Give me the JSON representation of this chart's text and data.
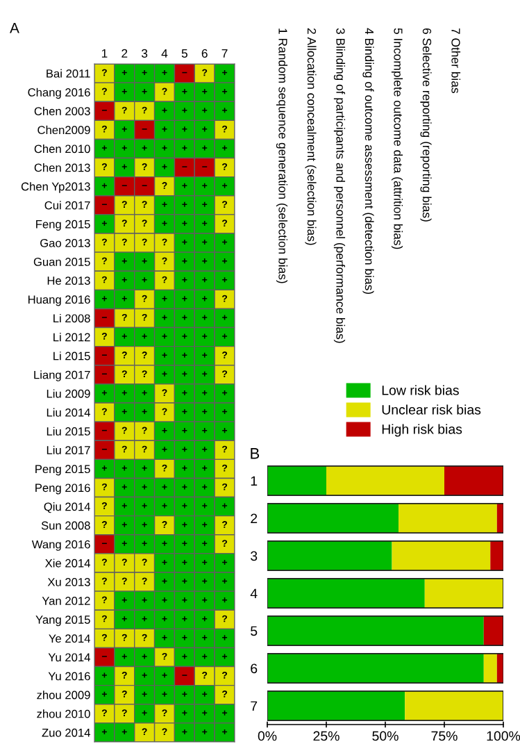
{
  "chart_data": [
    {
      "type": "heatmap",
      "title": "A",
      "categories": [
        "1",
        "2",
        "3",
        "4",
        "5",
        "6",
        "7"
      ],
      "y_categories": [
        "Bai 2011",
        "Chang 2016",
        "Chen 2003",
        "Chen2009",
        "Chen 2010",
        "Chen 2013",
        "Chen Yp2013",
        "Cui 2017",
        "Feng 2015",
        "Gao 2013",
        "Guan 2015",
        "He 2013",
        "Huang 2016",
        "Li 2008",
        "Li 2012",
        "Li 2015",
        "Liang 2017",
        "Liu 2009",
        "Liu 2014",
        "Liu 2015",
        "Liu 2017",
        "Peng 2015",
        "Peng 2016",
        "Qiu 2014",
        "Sun 2008",
        "Wang 2016",
        "Xie 2014",
        "Xu 2013",
        "Yan 2012",
        "Yang 2015",
        "Ye 2014",
        "Yu 2014",
        "Yu 2016",
        "zhou 2009",
        "zhou 2010",
        "Zuo 2014"
      ],
      "cells": [
        [
          "?",
          "+",
          "+",
          "+",
          "−",
          "?",
          "+"
        ],
        [
          "?",
          "+",
          "+",
          "?",
          "+",
          "+",
          "+"
        ],
        [
          "−",
          "?",
          "?",
          "+",
          "+",
          "+",
          "+"
        ],
        [
          "?",
          "+",
          "−",
          "+",
          "+",
          "+",
          "?"
        ],
        [
          "+",
          "+",
          "+",
          "+",
          "+",
          "+",
          "+"
        ],
        [
          "?",
          "+",
          "?",
          "+",
          "−",
          "−",
          "?"
        ],
        [
          "+",
          "−",
          "−",
          "?",
          "+",
          "+",
          "+"
        ],
        [
          "−",
          "?",
          "?",
          "+",
          "+",
          "+",
          "?"
        ],
        [
          "+",
          "?",
          "?",
          "+",
          "+",
          "+",
          "?"
        ],
        [
          "?",
          "?",
          "?",
          "?",
          "+",
          "+",
          "+"
        ],
        [
          "?",
          "+",
          "+",
          "?",
          "+",
          "+",
          "+"
        ],
        [
          "?",
          "+",
          "+",
          "?",
          "+",
          "+",
          "+"
        ],
        [
          "+",
          "+",
          "?",
          "+",
          "+",
          "+",
          "?"
        ],
        [
          "−",
          "?",
          "?",
          "+",
          "+",
          "+",
          "+"
        ],
        [
          "?",
          "+",
          "+",
          "+",
          "+",
          "+",
          "+"
        ],
        [
          "−",
          "?",
          "?",
          "+",
          "+",
          "+",
          "?"
        ],
        [
          "−",
          "?",
          "?",
          "+",
          "+",
          "+",
          "?"
        ],
        [
          "+",
          "+",
          "+",
          "?",
          "+",
          "+",
          "+"
        ],
        [
          "?",
          "+",
          "+",
          "?",
          "+",
          "+",
          "+"
        ],
        [
          "−",
          "?",
          "?",
          "+",
          "+",
          "+",
          "+"
        ],
        [
          "−",
          "?",
          "?",
          "+",
          "+",
          "+",
          "?"
        ],
        [
          "+",
          "+",
          "+",
          "?",
          "+",
          "+",
          "?"
        ],
        [
          "?",
          "+",
          "+",
          "+",
          "+",
          "+",
          "?"
        ],
        [
          "?",
          "+",
          "+",
          "+",
          "+",
          "+",
          "+"
        ],
        [
          "?",
          "+",
          "+",
          "?",
          "+",
          "+",
          "?"
        ],
        [
          "−",
          "+",
          "+",
          "+",
          "+",
          "+",
          "?"
        ],
        [
          "?",
          "?",
          "?",
          "+",
          "+",
          "+",
          "+"
        ],
        [
          "?",
          "?",
          "?",
          "+",
          "+",
          "+",
          "+"
        ],
        [
          "?",
          "+",
          "+",
          "+",
          "+",
          "+",
          "+"
        ],
        [
          "?",
          "+",
          "+",
          "+",
          "+",
          "+",
          "?"
        ],
        [
          "?",
          "?",
          "?",
          "+",
          "+",
          "+",
          "+"
        ],
        [
          "−",
          "+",
          "+",
          "?",
          "+",
          "+",
          "+"
        ],
        [
          "+",
          "?",
          "+",
          "+",
          "−",
          "?",
          "?"
        ],
        [
          "+",
          "?",
          "+",
          "+",
          "+",
          "+",
          "?"
        ],
        [
          "?",
          "?",
          "+",
          "?",
          "+",
          "+",
          "+"
        ],
        [
          "+",
          "+",
          "?",
          "?",
          "+",
          "+",
          "+"
        ]
      ],
      "colors": [
        [
          "#e0e000",
          "#00bb00",
          "#00bb00",
          "#00bb00",
          "#c00000",
          "#e0e000",
          "#00bb00"
        ],
        [
          "#e0e000",
          "#00bb00",
          "#00bb00",
          "#e0e000",
          "#00bb00",
          "#00bb00",
          "#00bb00"
        ],
        [
          "#c00000",
          "#e0e000",
          "#e0e000",
          "#00bb00",
          "#00bb00",
          "#00bb00",
          "#00bb00"
        ],
        [
          "#e0e000",
          "#00bb00",
          "#c00000",
          "#00bb00",
          "#00bb00",
          "#00bb00",
          "#e0e000"
        ],
        [
          "#00bb00",
          "#00bb00",
          "#00bb00",
          "#00bb00",
          "#00bb00",
          "#00bb00",
          "#00bb00"
        ],
        [
          "#e0e000",
          "#00bb00",
          "#e0e000",
          "#00bb00",
          "#c00000",
          "#c00000",
          "#e0e000"
        ],
        [
          "#00bb00",
          "#c00000",
          "#c00000",
          "#e0e000",
          "#00bb00",
          "#00bb00",
          "#00bb00"
        ],
        [
          "#c00000",
          "#e0e000",
          "#e0e000",
          "#00bb00",
          "#00bb00",
          "#00bb00",
          "#e0e000"
        ],
        [
          "#00bb00",
          "#e0e000",
          "#e0e000",
          "#00bb00",
          "#00bb00",
          "#00bb00",
          "#e0e000"
        ],
        [
          "#e0e000",
          "#e0e000",
          "#e0e000",
          "#e0e000",
          "#00bb00",
          "#00bb00",
          "#00bb00"
        ],
        [
          "#e0e000",
          "#00bb00",
          "#00bb00",
          "#e0e000",
          "#00bb00",
          "#00bb00",
          "#00bb00"
        ],
        [
          "#e0e000",
          "#00bb00",
          "#00bb00",
          "#e0e000",
          "#00bb00",
          "#00bb00",
          "#00bb00"
        ],
        [
          "#00bb00",
          "#00bb00",
          "#e0e000",
          "#00bb00",
          "#00bb00",
          "#00bb00",
          "#e0e000"
        ],
        [
          "#c00000",
          "#e0e000",
          "#e0e000",
          "#00bb00",
          "#00bb00",
          "#00bb00",
          "#00bb00"
        ],
        [
          "#e0e000",
          "#00bb00",
          "#00bb00",
          "#00bb00",
          "#00bb00",
          "#00bb00",
          "#00bb00"
        ],
        [
          "#c00000",
          "#e0e000",
          "#e0e000",
          "#00bb00",
          "#00bb00",
          "#00bb00",
          "#e0e000"
        ],
        [
          "#c00000",
          "#e0e000",
          "#e0e000",
          "#00bb00",
          "#00bb00",
          "#00bb00",
          "#e0e000"
        ],
        [
          "#00bb00",
          "#00bb00",
          "#00bb00",
          "#e0e000",
          "#00bb00",
          "#00bb00",
          "#00bb00"
        ],
        [
          "#e0e000",
          "#00bb00",
          "#00bb00",
          "#e0e000",
          "#00bb00",
          "#00bb00",
          "#00bb00"
        ],
        [
          "#c00000",
          "#e0e000",
          "#e0e000",
          "#00bb00",
          "#00bb00",
          "#00bb00",
          "#00bb00"
        ],
        [
          "#c00000",
          "#e0e000",
          "#e0e000",
          "#00bb00",
          "#00bb00",
          "#00bb00",
          "#e0e000"
        ],
        [
          "#00bb00",
          "#00bb00",
          "#00bb00",
          "#e0e000",
          "#00bb00",
          "#00bb00",
          "#e0e000"
        ],
        [
          "#e0e000",
          "#00bb00",
          "#00bb00",
          "#00bb00",
          "#00bb00",
          "#00bb00",
          "#e0e000"
        ],
        [
          "#e0e000",
          "#00bb00",
          "#00bb00",
          "#00bb00",
          "#00bb00",
          "#00bb00",
          "#00bb00"
        ],
        [
          "#e0e000",
          "#00bb00",
          "#00bb00",
          "#e0e000",
          "#00bb00",
          "#00bb00",
          "#e0e000"
        ],
        [
          "#c00000",
          "#00bb00",
          "#00bb00",
          "#00bb00",
          "#00bb00",
          "#00bb00",
          "#e0e000"
        ],
        [
          "#e0e000",
          "#e0e000",
          "#e0e000",
          "#00bb00",
          "#00bb00",
          "#00bb00",
          "#00bb00"
        ],
        [
          "#e0e000",
          "#e0e000",
          "#e0e000",
          "#00bb00",
          "#00bb00",
          "#00bb00",
          "#00bb00"
        ],
        [
          "#e0e000",
          "#00bb00",
          "#00bb00",
          "#00bb00",
          "#00bb00",
          "#00bb00",
          "#00bb00"
        ],
        [
          "#e0e000",
          "#00bb00",
          "#00bb00",
          "#00bb00",
          "#00bb00",
          "#00bb00",
          "#e0e000"
        ],
        [
          "#e0e000",
          "#e0e000",
          "#e0e000",
          "#00bb00",
          "#00bb00",
          "#00bb00",
          "#00bb00"
        ],
        [
          "#c00000",
          "#00bb00",
          "#00bb00",
          "#e0e000",
          "#00bb00",
          "#00bb00",
          "#00bb00"
        ],
        [
          "#00bb00",
          "#e0e000",
          "#00bb00",
          "#00bb00",
          "#c00000",
          "#e0e000",
          "#e0e000"
        ],
        [
          "#00bb00",
          "#e0e000",
          "#00bb00",
          "#00bb00",
          "#00bb00",
          "#00bb00",
          "#e0e000"
        ],
        [
          "#e0e000",
          "#e0e000",
          "#00bb00",
          "#e0e000",
          "#00bb00",
          "#00bb00",
          "#00bb00"
        ],
        [
          "#00bb00",
          "#00bb00",
          "#e0e000",
          "#e0e000",
          "#00bb00",
          "#00bb00",
          "#00bb00"
        ]
      ],
      "annotations": [
        "1 Random sequence generation (selection bias)",
        "2 Allocation concealment (selection bias)",
        "3 Blinding of participants and personnel (performance bias)",
        "4 Binding of outcome assessment (detection bias)",
        "5 Incomplete outcome data (attrition bias)",
        "6 Selective reporting (reporting bias)",
        "7 Other bias"
      ]
    },
    {
      "type": "bar",
      "title": "B",
      "orientation": "horizontal",
      "stacked": true,
      "categories": [
        "1",
        "2",
        "3",
        "4",
        "5",
        "6",
        "7"
      ],
      "series": [
        {
          "name": "Low risk bias",
          "color": "#00bb00",
          "values": [
            25.0,
            55.6,
            52.8,
            66.7,
            91.7,
            91.7,
            58.3
          ]
        },
        {
          "name": "Unclear risk bias",
          "color": "#e0e000",
          "values": [
            50.0,
            41.7,
            41.7,
            33.3,
            0,
            5.6,
            41.7
          ]
        },
        {
          "name": "High risk bias",
          "color": "#c00000",
          "values": [
            25.0,
            2.8,
            5.6,
            0,
            8.3,
            2.8,
            0
          ]
        }
      ],
      "xlim": [
        0,
        100
      ],
      "xticks": [
        {
          "value": 0,
          "label": "0%"
        },
        {
          "value": 25,
          "label": "25%"
        },
        {
          "value": 50,
          "label": "50%"
        },
        {
          "value": 75,
          "label": "75%"
        },
        {
          "value": 100,
          "label": "100%"
        }
      ],
      "legend": "top"
    }
  ]
}
